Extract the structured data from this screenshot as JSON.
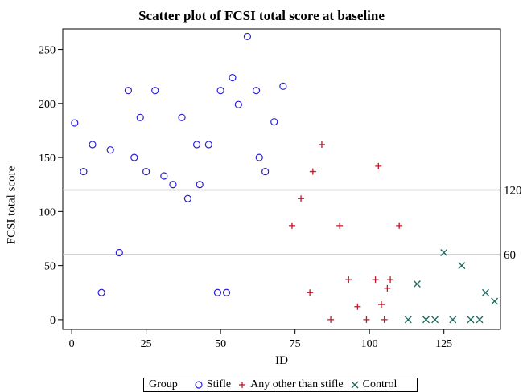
{
  "chart_data": {
    "type": "scatter",
    "title": "Scatter plot of FCSI total score at baseline",
    "xlabel": "ID",
    "ylabel": "FCSI total score",
    "xlim": [
      -3,
      144
    ],
    "ylim": [
      -9,
      269
    ],
    "x_ticks": [
      0,
      25,
      50,
      75,
      100,
      125
    ],
    "y_ticks": [
      0,
      50,
      100,
      150,
      200,
      250
    ],
    "reference_lines": [
      {
        "y": 120,
        "label": "120"
      },
      {
        "y": 60,
        "label": "60"
      }
    ],
    "legend": {
      "title": "Group",
      "position": "bottom"
    },
    "series": [
      {
        "name": "Stifle",
        "marker": "circle",
        "color": "#2a1fd6",
        "points": [
          [
            1,
            182
          ],
          [
            4,
            137
          ],
          [
            7,
            162
          ],
          [
            10,
            25
          ],
          [
            13,
            157
          ],
          [
            16,
            62
          ],
          [
            19,
            212
          ],
          [
            21,
            150
          ],
          [
            23,
            187
          ],
          [
            25,
            137
          ],
          [
            28,
            212
          ],
          [
            31,
            133
          ],
          [
            34,
            125
          ],
          [
            37,
            187
          ],
          [
            39,
            112
          ],
          [
            42,
            162
          ],
          [
            43,
            125
          ],
          [
            46,
            162
          ],
          [
            49,
            25
          ],
          [
            50,
            212
          ],
          [
            52,
            25
          ],
          [
            54,
            224
          ],
          [
            56,
            199
          ],
          [
            59,
            262
          ],
          [
            62,
            212
          ],
          [
            63,
            150
          ],
          [
            65,
            137
          ],
          [
            68,
            183
          ],
          [
            71,
            216
          ]
        ]
      },
      {
        "name": "Any other than stifle",
        "marker": "plus",
        "color": "#c0182a",
        "points": [
          [
            74,
            87
          ],
          [
            77,
            112
          ],
          [
            80,
            25
          ],
          [
            81,
            137
          ],
          [
            84,
            162
          ],
          [
            87,
            0
          ],
          [
            90,
            87
          ],
          [
            93,
            37
          ],
          [
            96,
            12
          ],
          [
            99,
            0
          ],
          [
            102,
            37
          ],
          [
            103,
            142
          ],
          [
            104,
            14
          ],
          [
            105,
            0
          ],
          [
            106,
            29
          ],
          [
            107,
            37
          ],
          [
            110,
            87
          ]
        ]
      },
      {
        "name": "Control",
        "marker": "x",
        "color": "#1c6a5e",
        "points": [
          [
            113,
            0
          ],
          [
            116,
            33
          ],
          [
            119,
            0
          ],
          [
            122,
            0
          ],
          [
            125,
            62
          ],
          [
            128,
            0
          ],
          [
            131,
            50
          ],
          [
            134,
            0
          ],
          [
            137,
            0
          ],
          [
            139,
            25
          ],
          [
            142,
            17
          ]
        ]
      }
    ]
  }
}
